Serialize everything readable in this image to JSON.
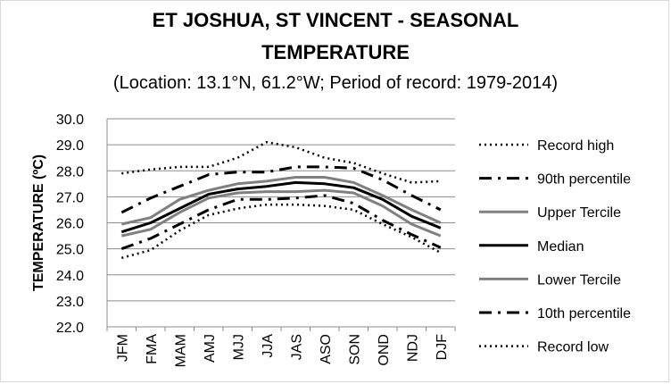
{
  "chart_data": {
    "type": "line",
    "title": "ET JOSHUA, ST VINCENT - SEASONAL TEMPERATURE",
    "title_line1": "ET JOSHUA, ST VINCENT - SEASONAL",
    "title_line2": "TEMPERATURE",
    "subtitle": "(Location: 13.1°N, 61.2°W; Period of record: 1979-2014)",
    "ylabel": "TEMPERATURE (ºC)",
    "xlabel": "",
    "ylim": [
      22.0,
      30.0
    ],
    "yticks": [
      "22.0",
      "23.0",
      "24.0",
      "25.0",
      "26.0",
      "27.0",
      "28.0",
      "29.0",
      "30.0"
    ],
    "grid": true,
    "legend_position": "right",
    "categories": [
      "JFM",
      "FMA",
      "MAM",
      "AMJ",
      "MJJ",
      "JJA",
      "JAS",
      "ASO",
      "SON",
      "OND",
      "NDJ",
      "DJF"
    ],
    "series": [
      {
        "name": "Record high",
        "color": "#000000",
        "style": "dotted",
        "values": [
          27.9,
          28.05,
          28.15,
          28.15,
          28.5,
          29.1,
          28.9,
          28.5,
          28.3,
          27.9,
          27.55,
          27.6
        ]
      },
      {
        "name": "90th percentile",
        "color": "#000000",
        "style": "dashdot",
        "values": [
          26.4,
          26.95,
          27.4,
          27.85,
          27.95,
          27.95,
          28.15,
          28.15,
          28.1,
          27.65,
          27.05,
          26.5
        ]
      },
      {
        "name": "Upper Tercile",
        "color": "#808080",
        "style": "solid",
        "values": [
          25.95,
          26.2,
          26.9,
          27.25,
          27.5,
          27.6,
          27.75,
          27.75,
          27.55,
          27.05,
          26.5,
          26.0
        ]
      },
      {
        "name": "Median",
        "color": "#000000",
        "style": "solid",
        "values": [
          25.65,
          26.0,
          26.55,
          27.1,
          27.3,
          27.4,
          27.55,
          27.5,
          27.35,
          26.9,
          26.25,
          25.8
        ]
      },
      {
        "name": "Lower Tercile",
        "color": "#808080",
        "style": "solid",
        "values": [
          25.5,
          25.75,
          26.4,
          26.95,
          27.15,
          27.2,
          27.2,
          27.25,
          27.15,
          26.65,
          25.95,
          25.5
        ]
      },
      {
        "name": "10th percentile",
        "color": "#000000",
        "style": "dashdot",
        "values": [
          25.0,
          25.4,
          25.95,
          26.5,
          26.9,
          26.9,
          26.95,
          27.05,
          26.75,
          26.1,
          25.55,
          25.05
        ]
      },
      {
        "name": "Record low",
        "color": "#000000",
        "style": "dotted",
        "values": [
          24.65,
          24.95,
          25.7,
          26.3,
          26.55,
          26.7,
          26.7,
          26.65,
          26.5,
          25.95,
          25.45,
          24.85
        ]
      }
    ]
  }
}
